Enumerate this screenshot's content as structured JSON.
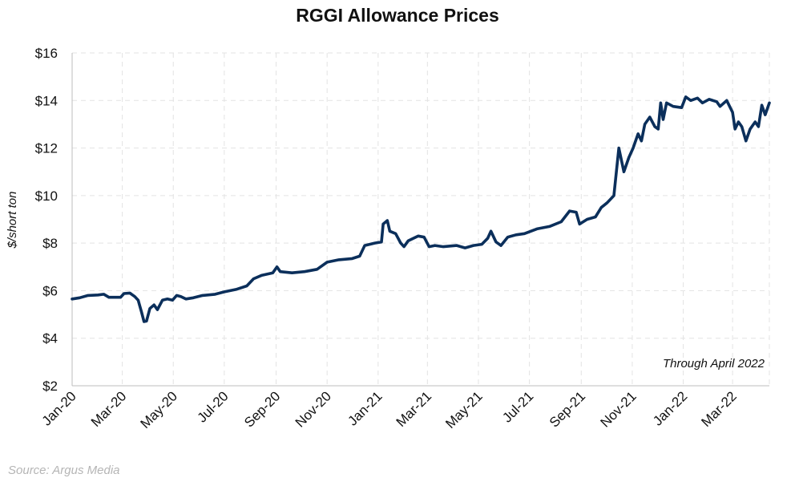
{
  "chart_data": {
    "type": "line",
    "title": "RGGI Allowance Prices",
    "ylabel": "$/short ton",
    "xlabel": "",
    "ylim": [
      2,
      16
    ],
    "yticks": [
      "$2",
      "$4",
      "$6",
      "$8",
      "$10",
      "$12",
      "$14",
      "$16"
    ],
    "xlim": [
      "2020-01-01",
      "2022-04-14"
    ],
    "xticks": [
      {
        "date": "2020-01-01",
        "label": "Jan-20"
      },
      {
        "date": "2020-03-01",
        "label": "Mar-20"
      },
      {
        "date": "2020-05-01",
        "label": "May-20"
      },
      {
        "date": "2020-07-01",
        "label": "Jul-20"
      },
      {
        "date": "2020-09-01",
        "label": "Sep-20"
      },
      {
        "date": "2020-11-01",
        "label": "Nov-20"
      },
      {
        "date": "2021-01-01",
        "label": "Jan-21"
      },
      {
        "date": "2021-03-01",
        "label": "Mar-21"
      },
      {
        "date": "2021-05-01",
        "label": "May-21"
      },
      {
        "date": "2021-07-01",
        "label": "Jul-21"
      },
      {
        "date": "2021-09-01",
        "label": "Sep-21"
      },
      {
        "date": "2021-11-01",
        "label": "Nov-21"
      },
      {
        "date": "2022-01-01",
        "label": "Jan-22"
      },
      {
        "date": "2022-03-01",
        "label": "Mar-22"
      }
    ],
    "grid": true,
    "line_color": "#0b2f5b",
    "annotation": "Through April 2022",
    "series": [
      {
        "points": [
          [
            "2020-01-01",
            5.65
          ],
          [
            "2020-01-10",
            5.7
          ],
          [
            "2020-01-20",
            5.8
          ],
          [
            "2020-02-01",
            5.82
          ],
          [
            "2020-02-08",
            5.85
          ],
          [
            "2020-02-14",
            5.72
          ],
          [
            "2020-02-28",
            5.72
          ],
          [
            "2020-03-03",
            5.88
          ],
          [
            "2020-03-10",
            5.9
          ],
          [
            "2020-03-16",
            5.75
          ],
          [
            "2020-03-20",
            5.6
          ],
          [
            "2020-03-24",
            5.1
          ],
          [
            "2020-03-27",
            4.7
          ],
          [
            "2020-03-30",
            4.72
          ],
          [
            "2020-04-03",
            5.25
          ],
          [
            "2020-04-08",
            5.4
          ],
          [
            "2020-04-12",
            5.2
          ],
          [
            "2020-04-18",
            5.6
          ],
          [
            "2020-04-24",
            5.65
          ],
          [
            "2020-04-30",
            5.6
          ],
          [
            "2020-05-05",
            5.8
          ],
          [
            "2020-05-10",
            5.75
          ],
          [
            "2020-05-16",
            5.65
          ],
          [
            "2020-05-25",
            5.7
          ],
          [
            "2020-06-05",
            5.8
          ],
          [
            "2020-06-20",
            5.85
          ],
          [
            "2020-07-01",
            5.95
          ],
          [
            "2020-07-15",
            6.05
          ],
          [
            "2020-07-28",
            6.2
          ],
          [
            "2020-08-05",
            6.5
          ],
          [
            "2020-08-15",
            6.65
          ],
          [
            "2020-08-28",
            6.75
          ],
          [
            "2020-09-02",
            7.0
          ],
          [
            "2020-09-06",
            6.8
          ],
          [
            "2020-09-20",
            6.75
          ],
          [
            "2020-10-05",
            6.8
          ],
          [
            "2020-10-20",
            6.9
          ],
          [
            "2020-11-01",
            7.2
          ],
          [
            "2020-11-15",
            7.3
          ],
          [
            "2020-12-01",
            7.35
          ],
          [
            "2020-12-10",
            7.45
          ],
          [
            "2020-12-16",
            7.9
          ],
          [
            "2020-12-28",
            8.0
          ],
          [
            "2021-01-05",
            8.05
          ],
          [
            "2021-01-07",
            8.8
          ],
          [
            "2021-01-12",
            8.95
          ],
          [
            "2021-01-15",
            8.5
          ],
          [
            "2021-01-22",
            8.4
          ],
          [
            "2021-01-28",
            8.0
          ],
          [
            "2021-02-01",
            7.85
          ],
          [
            "2021-02-06",
            8.1
          ],
          [
            "2021-02-12",
            8.2
          ],
          [
            "2021-02-18",
            8.3
          ],
          [
            "2021-02-25",
            8.25
          ],
          [
            "2021-03-03",
            7.85
          ],
          [
            "2021-03-10",
            7.9
          ],
          [
            "2021-03-20",
            7.85
          ],
          [
            "2021-04-05",
            7.9
          ],
          [
            "2021-04-15",
            7.8
          ],
          [
            "2021-04-25",
            7.9
          ],
          [
            "2021-05-05",
            7.95
          ],
          [
            "2021-05-12",
            8.2
          ],
          [
            "2021-05-16",
            8.5
          ],
          [
            "2021-05-22",
            8.05
          ],
          [
            "2021-05-28",
            7.9
          ],
          [
            "2021-06-05",
            8.25
          ],
          [
            "2021-06-15",
            8.35
          ],
          [
            "2021-06-25",
            8.4
          ],
          [
            "2021-07-10",
            8.6
          ],
          [
            "2021-07-25",
            8.7
          ],
          [
            "2021-08-08",
            8.9
          ],
          [
            "2021-08-18",
            9.35
          ],
          [
            "2021-08-26",
            9.3
          ],
          [
            "2021-08-30",
            8.8
          ],
          [
            "2021-09-08",
            9.0
          ],
          [
            "2021-09-18",
            9.1
          ],
          [
            "2021-09-25",
            9.5
          ],
          [
            "2021-10-02",
            9.7
          ],
          [
            "2021-10-10",
            10.0
          ],
          [
            "2021-10-16",
            12.0
          ],
          [
            "2021-10-22",
            11.0
          ],
          [
            "2021-10-28",
            11.6
          ],
          [
            "2021-11-02",
            12.0
          ],
          [
            "2021-11-08",
            12.6
          ],
          [
            "2021-11-12",
            12.3
          ],
          [
            "2021-11-16",
            13.0
          ],
          [
            "2021-11-22",
            13.3
          ],
          [
            "2021-11-28",
            12.9
          ],
          [
            "2021-12-02",
            12.8
          ],
          [
            "2021-12-05",
            13.9
          ],
          [
            "2021-12-08",
            13.2
          ],
          [
            "2021-12-12",
            13.9
          ],
          [
            "2021-12-20",
            13.75
          ],
          [
            "2021-12-30",
            13.7
          ],
          [
            "2022-01-04",
            14.15
          ],
          [
            "2022-01-10",
            14.0
          ],
          [
            "2022-01-18",
            14.1
          ],
          [
            "2022-01-24",
            13.9
          ],
          [
            "2022-02-01",
            14.05
          ],
          [
            "2022-02-10",
            13.95
          ],
          [
            "2022-02-14",
            13.75
          ],
          [
            "2022-02-22",
            14.0
          ],
          [
            "2022-03-01",
            13.5
          ],
          [
            "2022-03-04",
            12.8
          ],
          [
            "2022-03-08",
            13.1
          ],
          [
            "2022-03-12",
            12.9
          ],
          [
            "2022-03-17",
            12.3
          ],
          [
            "2022-03-22",
            12.8
          ],
          [
            "2022-03-28",
            13.1
          ],
          [
            "2022-04-01",
            12.9
          ],
          [
            "2022-04-05",
            13.8
          ],
          [
            "2022-04-09",
            13.4
          ],
          [
            "2022-04-14",
            13.9
          ]
        ]
      }
    ]
  },
  "source": "Source: Argus Media"
}
